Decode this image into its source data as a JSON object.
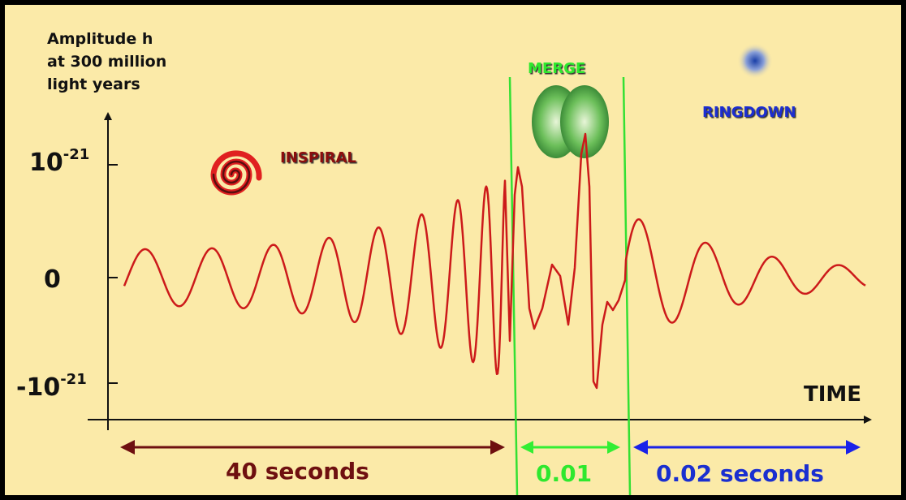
{
  "axis": {
    "y_label": [
      "Amplitude h",
      "at 300 million",
      "light years"
    ],
    "y_ticks": [
      {
        "base": "10",
        "exponent": "-21"
      },
      {
        "base": "0"
      },
      {
        "base": "-10",
        "exponent": "-21"
      }
    ],
    "x_label": "TIME"
  },
  "phases": [
    {
      "name": "INSPIRAL",
      "duration": "40 seconds"
    },
    {
      "name": "MERGE",
      "duration": "0.01"
    },
    {
      "name": "RINGDOWN",
      "duration": "0.02 seconds"
    }
  ]
}
